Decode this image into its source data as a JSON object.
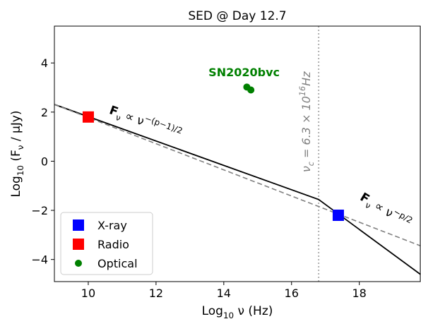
{
  "chart_data": {
    "type": "line",
    "title": "SED @ Day 12.7",
    "xlabel": "Log$_{10}$ ν (Hz)",
    "ylabel": "Log$_{10}$ (F$_ν$ / μJy)",
    "xlim": [
      9,
      19.8
    ],
    "ylim": [
      -4.9,
      5.5
    ],
    "xticks": [
      10,
      12,
      14,
      16,
      18
    ],
    "yticks": [
      -4,
      -2,
      0,
      2,
      4
    ],
    "grid": false,
    "legend_position": "lower-left",
    "legend": [
      {
        "label": "X-ray",
        "color": "#0000ff",
        "marker": "square"
      },
      {
        "label": "Radio",
        "color": "#ff0000",
        "marker": "square"
      },
      {
        "label": "Optical",
        "color": "#008000",
        "marker": "circle"
      }
    ],
    "series": [
      {
        "name": "X-ray",
        "kind": "scatter",
        "marker": "square",
        "color": "#0000ff",
        "points": [
          [
            17.38,
            -2.2
          ]
        ]
      },
      {
        "name": "Radio",
        "kind": "scatter",
        "marker": "square",
        "color": "#ff0000",
        "points": [
          [
            10.0,
            1.8
          ]
        ]
      },
      {
        "name": "Optical",
        "kind": "scatter",
        "marker": "circle",
        "color": "#008000",
        "points": [
          [
            14.68,
            3.02
          ],
          [
            14.8,
            2.9
          ]
        ]
      },
      {
        "kind": "line",
        "style": "solid",
        "color": "#000000",
        "points": [
          [
            9.0,
            2.31
          ],
          [
            16.8,
            -1.56
          ],
          [
            19.8,
            -4.6
          ]
        ]
      },
      {
        "kind": "line",
        "style": "dashed",
        "color": "#808080",
        "points": [
          [
            9.0,
            2.31
          ],
          [
            19.8,
            -3.44
          ]
        ]
      }
    ],
    "vline": {
      "x": 16.8,
      "color": "#b0b0b0",
      "style": "dotted"
    },
    "annotations": {
      "object_name": "SN2020bvc",
      "object_color": "#008000",
      "object_at": [
        14.6,
        3.6
      ],
      "nu_c_label": "ν$_c$ = 6.3 × 10$^{16}$Hz",
      "nu_c_color": "#808080",
      "nu_c_at": [
        16.55,
        1.6
      ],
      "slope_low_label": "F$_ν$  ∝  ν$^{−(p−1)/2}$",
      "slope_low_at": [
        10.6,
        1.95
      ],
      "slope_high_label": "F$_ν$  ∝  ν$^{−p/2}$",
      "slope_high_at": [
        18.0,
        -1.55
      ]
    }
  }
}
